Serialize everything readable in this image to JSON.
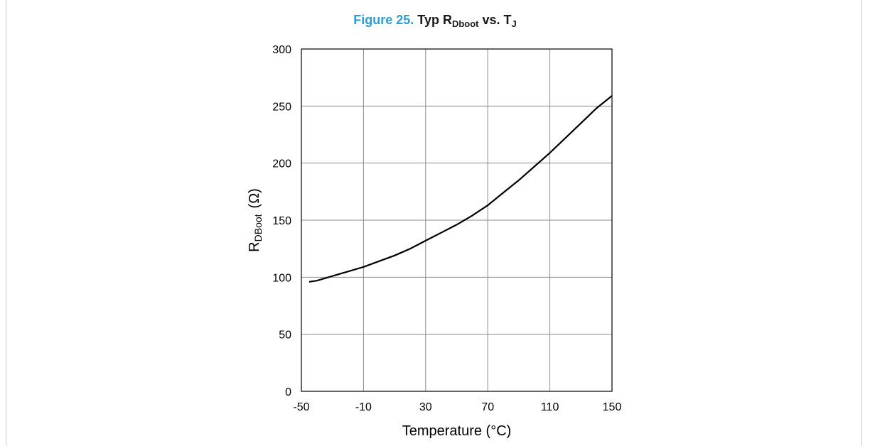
{
  "figure": {
    "number": "Figure 25.",
    "title_main": "Typ R",
    "title_sub": "Dboot",
    "title_mid": " vs. T",
    "title_sub2": "J"
  },
  "chart_data": {
    "type": "line",
    "xlabel": "Temperature (°C)",
    "ylabel_main": "R",
    "ylabel_sub": "DBoot",
    "ylabel_unit": "(Ω)",
    "xlim": [
      -50,
      150
    ],
    "ylim": [
      0,
      300
    ],
    "xticks": [
      -50,
      -10,
      30,
      70,
      110,
      150
    ],
    "xtick_labels": [
      "-50",
      "-10",
      "30",
      "70",
      "110",
      "150"
    ],
    "yticks": [
      0,
      50,
      100,
      150,
      200,
      250,
      300
    ],
    "ytick_labels": [
      "0",
      "50",
      "100",
      "150",
      "200",
      "250",
      "300"
    ],
    "grid": true,
    "series": [
      {
        "x": [
          -45,
          -40,
          -30,
          -20,
          -10,
          0,
          10,
          20,
          30,
          40,
          50,
          60,
          70,
          80,
          90,
          100,
          110,
          120,
          130,
          140,
          150
        ],
        "y": [
          96,
          97,
          101,
          105,
          109,
          114,
          119,
          125,
          132,
          139,
          146,
          154,
          163,
          174,
          185,
          197,
          209,
          222,
          235,
          248,
          259
        ],
        "color": "#000000"
      }
    ]
  }
}
